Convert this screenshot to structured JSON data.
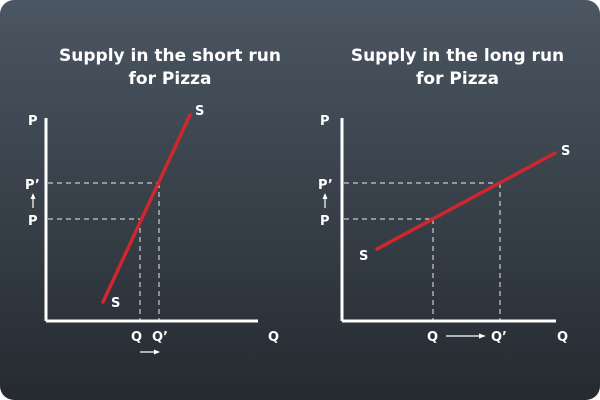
{
  "background_colors": [
    "#4b5662",
    "#252a30"
  ],
  "line_color": "#d0262e",
  "left_panel": {
    "title_line1": "Supply in the short run",
    "title_line2": "for Pizza",
    "y_axis": "P",
    "x_axis": "Q",
    "price_initial": "P",
    "price_new": "P’",
    "qty_initial": "Q",
    "qty_new": "Q’",
    "curve_label_top": "S",
    "curve_label_bottom": "S",
    "price_arrow_icon": "up-arrow",
    "qty_arrow_icon": "right-arrow"
  },
  "right_panel": {
    "title_line1": "Supply in the long run",
    "title_line2": "for Pizza",
    "y_axis": "P",
    "x_axis": "Q",
    "price_initial": "P",
    "price_new": "P’",
    "qty_initial": "Q",
    "qty_new": "Q’",
    "curve_label_top": "S",
    "curve_label_bottom": "S",
    "price_arrow_icon": "up-arrow",
    "qty_arrow_icon": "right-arrow"
  }
}
